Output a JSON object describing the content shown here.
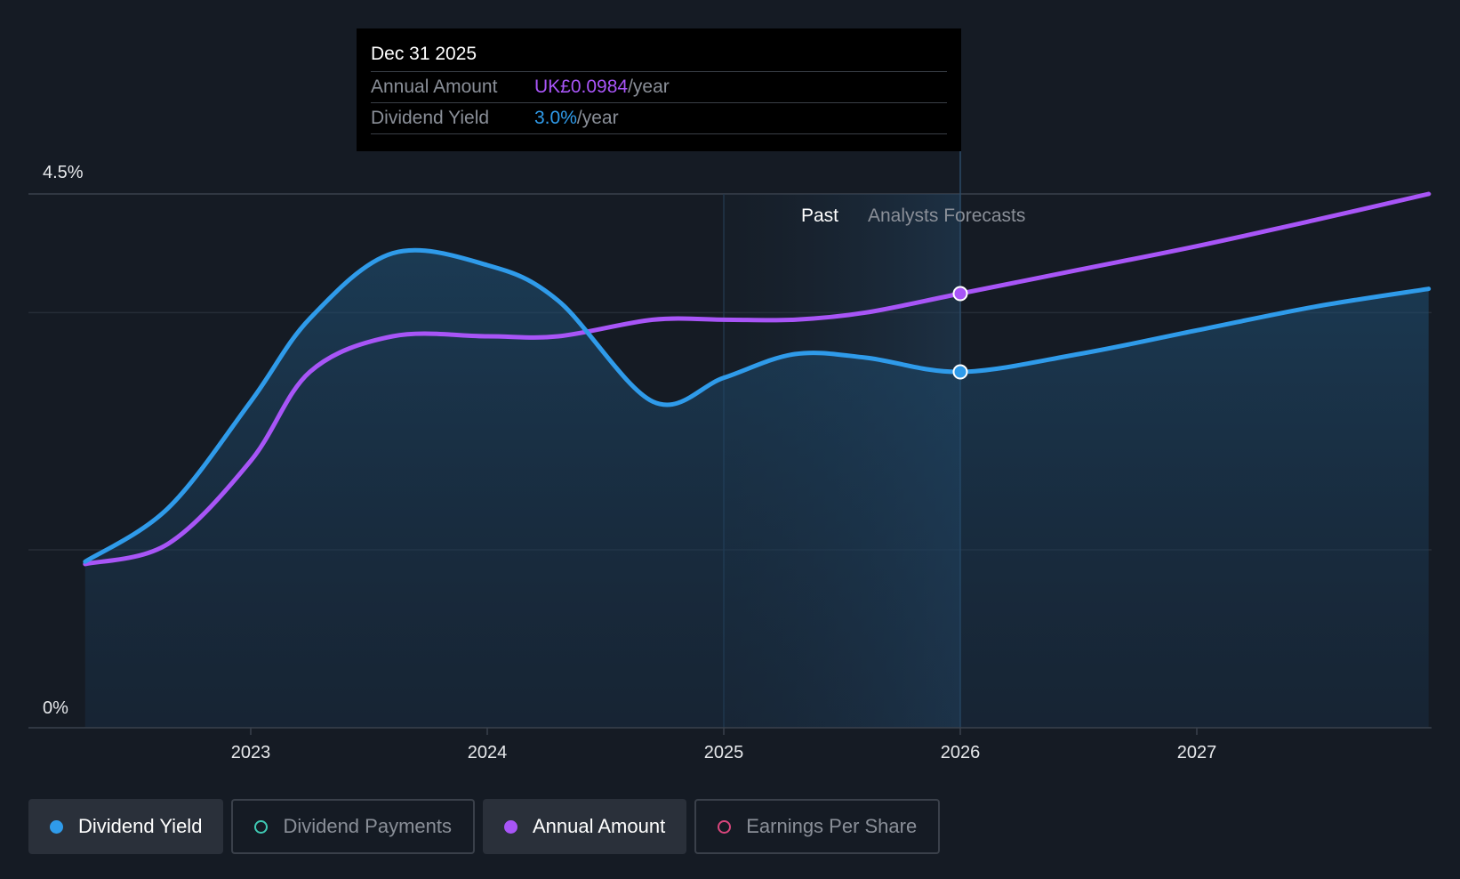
{
  "chart_data": {
    "type": "line",
    "y_axis": {
      "min": 0,
      "max": 4.5,
      "labels": [
        "4.5%",
        "0%"
      ]
    },
    "x_axis": {
      "ticks": [
        2023,
        2024,
        2025,
        2026,
        2027
      ]
    },
    "regions": {
      "past_label": "Past",
      "forecast_label": "Analysts Forecasts"
    },
    "series": [
      {
        "name": "Dividend Yield",
        "color": "#2f9bea",
        "points": [
          [
            2022.3,
            1.4
          ],
          [
            2022.65,
            1.85
          ],
          [
            2023.0,
            2.75
          ],
          [
            2023.25,
            3.45
          ],
          [
            2023.6,
            4.0
          ],
          [
            2024.0,
            3.9
          ],
          [
            2024.3,
            3.6
          ],
          [
            2024.7,
            2.75
          ],
          [
            2025.0,
            2.95
          ],
          [
            2025.3,
            3.15
          ],
          [
            2025.6,
            3.12
          ],
          [
            2026.0,
            3.0
          ],
          [
            2026.5,
            3.15
          ],
          [
            2027.0,
            3.35
          ],
          [
            2027.5,
            3.55
          ],
          [
            2027.98,
            3.7
          ]
        ]
      },
      {
        "name": "Annual Amount",
        "color": "#a855f7",
        "points": [
          [
            2022.3,
            1.38
          ],
          [
            2022.65,
            1.55
          ],
          [
            2023.0,
            2.25
          ],
          [
            2023.25,
            3.0
          ],
          [
            2023.6,
            3.3
          ],
          [
            2024.0,
            3.3
          ],
          [
            2024.3,
            3.3
          ],
          [
            2024.7,
            3.44
          ],
          [
            2025.0,
            3.44
          ],
          [
            2025.3,
            3.44
          ],
          [
            2025.6,
            3.5
          ],
          [
            2026.0,
            3.66
          ],
          [
            2026.5,
            3.86
          ],
          [
            2027.0,
            4.06
          ],
          [
            2027.5,
            4.28
          ],
          [
            2027.98,
            4.5
          ]
        ]
      }
    ],
    "highlight_x": 2026.0,
    "tooltip": {
      "date": "Dec 31 2025",
      "rows": [
        {
          "label": "Annual Amount",
          "value": "UK£0.0984",
          "unit": "/year",
          "color": "#a855f7"
        },
        {
          "label": "Dividend Yield",
          "value": "3.0%",
          "unit": "/year",
          "color": "#2f9bea"
        }
      ]
    }
  },
  "legend": [
    {
      "label": "Dividend Yield",
      "color": "#2f9bea",
      "active": true,
      "filled": true
    },
    {
      "label": "Dividend Payments",
      "color": "#3fc9b3",
      "active": false,
      "filled": false
    },
    {
      "label": "Annual Amount",
      "color": "#a855f7",
      "active": true,
      "filled": true
    },
    {
      "label": "Earnings Per Share",
      "color": "#d9467c",
      "active": false,
      "filled": false
    }
  ]
}
